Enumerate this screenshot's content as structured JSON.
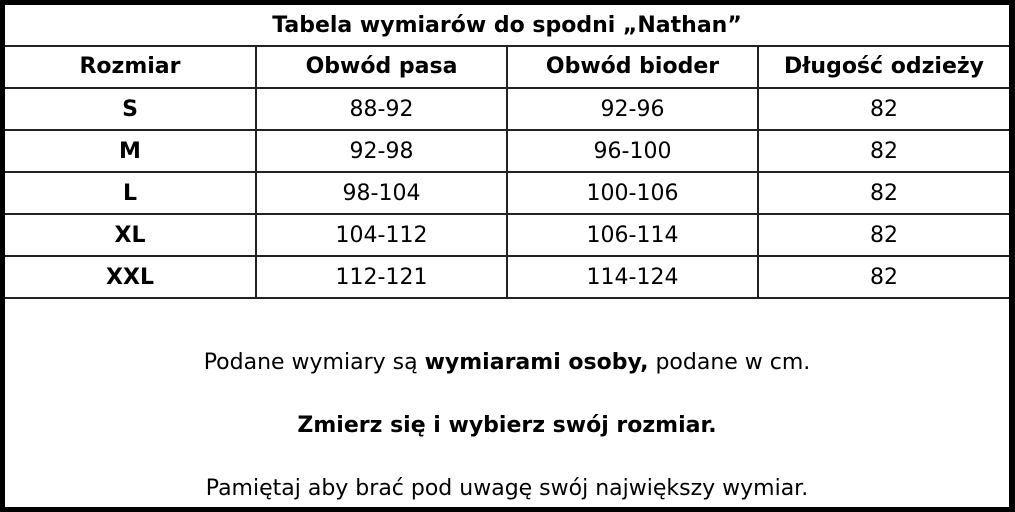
{
  "title": "Tabela wymiarów do spodni „Nathan”",
  "table": {
    "headers": [
      "Rozmiar",
      "Obwód pasa",
      "Obwód bioder",
      "Długość odzieży"
    ],
    "rows": [
      [
        "S",
        "88-92",
        "92-96",
        "82"
      ],
      [
        "M",
        "92-98",
        "96-100",
        "82"
      ],
      [
        "L",
        "98-104",
        "100-106",
        "82"
      ],
      [
        "XL",
        "104-112",
        "106-114",
        "82"
      ],
      [
        "XXL",
        "112-121",
        "114-124",
        "82"
      ]
    ]
  },
  "notes": {
    "line1_pre": "Podane wymiary są ",
    "line1_bold": "wymiarami osoby,",
    "line1_post": " podane w cm.",
    "line2": "Zmierz się i wybierz swój rozmiar.",
    "line3": "Pamiętaj aby brać pod uwagę swój największy wymiar."
  }
}
